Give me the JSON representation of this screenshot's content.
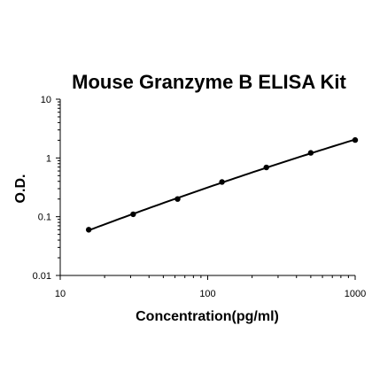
{
  "chart_data": {
    "type": "scatter",
    "title": "Mouse Granzyme B ELISA Kit",
    "xlabel": "Concentration(pg/ml)",
    "ylabel": "O.D.",
    "x_scale": "log",
    "y_scale": "log",
    "xlim": [
      10,
      1000
    ],
    "ylim": [
      0.01,
      10
    ],
    "x_ticks": [
      "10",
      "100",
      "1000"
    ],
    "y_ticks": [
      "0.01",
      "0.1",
      "1",
      "10"
    ],
    "grid": false,
    "legend": "none",
    "series": [
      {
        "points": [
          {
            "x": 15.6,
            "y": 0.06
          },
          {
            "x": 31.25,
            "y": 0.11
          },
          {
            "x": 62.5,
            "y": 0.2
          },
          {
            "x": 125,
            "y": 0.39
          },
          {
            "x": 250,
            "y": 0.69
          },
          {
            "x": 500,
            "y": 1.22
          },
          {
            "x": 1000,
            "y": 2.02
          }
        ],
        "fit_line": true
      }
    ],
    "colors": {
      "axis": "#000000",
      "marker": "#000000",
      "line": "#000000"
    }
  }
}
